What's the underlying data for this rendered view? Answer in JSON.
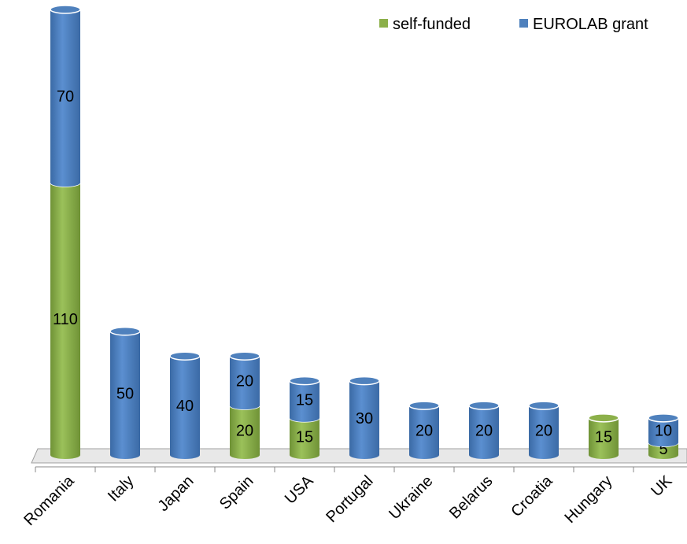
{
  "chart_data": {
    "type": "bar",
    "stacked": true,
    "categories": [
      "Romania",
      "Italy",
      "Japan",
      "Spain",
      "USA",
      "Portugal",
      "Ukraine",
      "Belarus",
      "Croatia",
      "Hungary",
      "UK"
    ],
    "series": [
      {
        "name": "self-funded",
        "color": "#8cb04a",
        "values": [
          110,
          null,
          null,
          20,
          15,
          null,
          null,
          null,
          null,
          15,
          5
        ]
      },
      {
        "name": "EUROLAB grant",
        "color": "#4f81bd",
        "values": [
          70,
          50,
          40,
          20,
          15,
          30,
          20,
          20,
          20,
          null,
          10
        ]
      }
    ],
    "legend": "top-right"
  }
}
